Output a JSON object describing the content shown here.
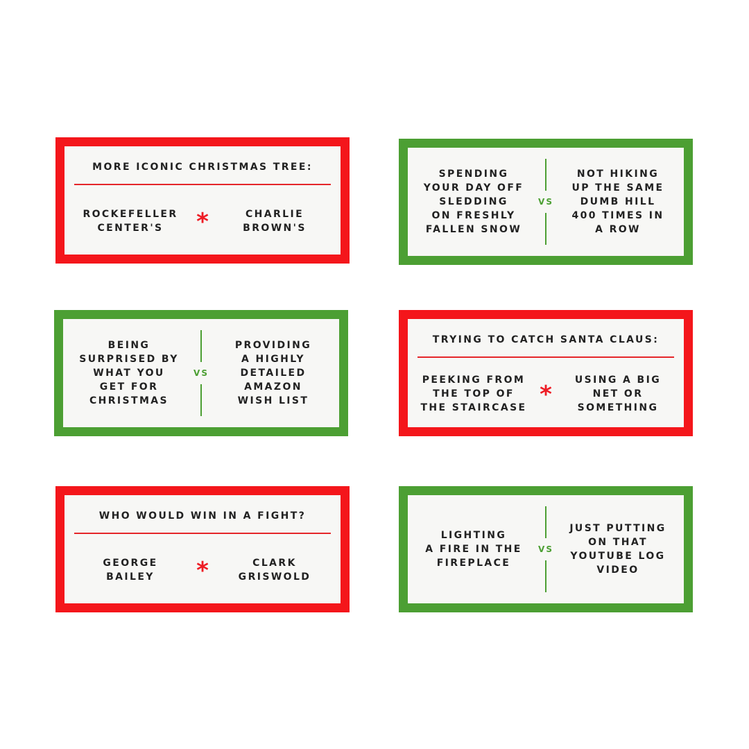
{
  "colors": {
    "red": "#f4161b",
    "green": "#4c9f33",
    "card_bg": "#f7f7f5",
    "text": "#222222"
  },
  "cards": [
    {
      "style": "red",
      "title": "MORE ICONIC CHRISTMAS TREE:",
      "left": "ROCKEFELLER\nCENTER'S",
      "right": "CHARLIE\nBROWN'S",
      "separator": "*"
    },
    {
      "style": "green",
      "left": "SPENDING\nYOUR DAY OFF\nSLEDDING\nON FRESHLY\nFALLEN SNOW",
      "right": "NOT HIKING\nUP THE SAME\nDUMB HILL\n400 TIMES IN\nA ROW",
      "separator": "VS"
    },
    {
      "style": "green",
      "left": "BEING\nSURPRISED BY\nWHAT YOU\nGET FOR\nCHRISTMAS",
      "right": "PROVIDING\nA HIGHLY\nDETAILED\nAMAZON\nWISH LIST",
      "separator": "VS"
    },
    {
      "style": "red",
      "title": "TRYING TO CATCH SANTA CLAUS:",
      "left": "PEEKING FROM\nTHE TOP OF\nTHE STAIRCASE",
      "right": "USING A BIG\nNET OR\nSOMETHING",
      "separator": "*"
    },
    {
      "style": "red",
      "title": "WHO WOULD WIN IN A FIGHT?",
      "left": "GEORGE\nBAILEY",
      "right": "CLARK\nGRISWOLD",
      "separator": "*"
    },
    {
      "style": "green",
      "left": "LIGHTING\nA FIRE IN THE\nFIREPLACE",
      "right": "JUST PUTTING\nON THAT\nYOUTUBE LOG\nVIDEO",
      "separator": "VS"
    }
  ]
}
